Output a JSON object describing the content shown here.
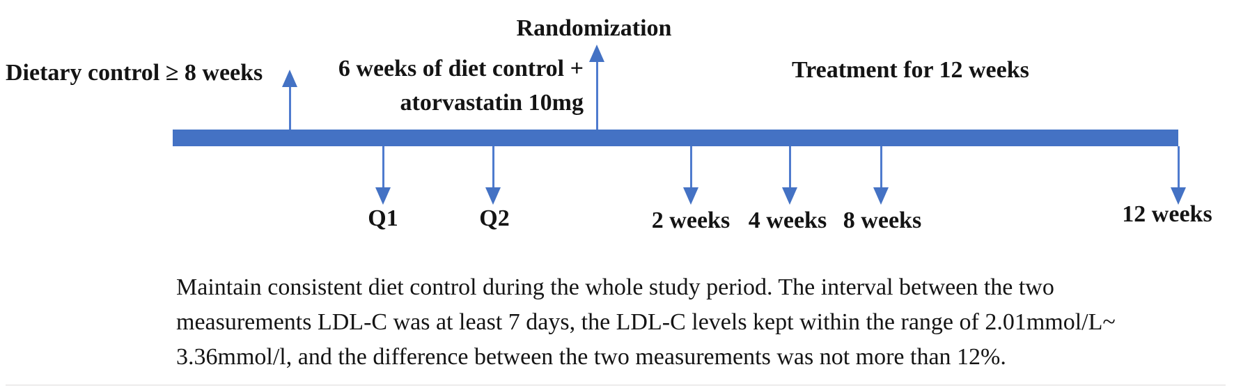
{
  "figure": {
    "type": "study-timeline-diagram",
    "colors": {
      "bar": "#4472C4",
      "arrow": "#4472C4",
      "arrow_tail": "#4F7BCE",
      "text": "#141414"
    },
    "phase_labels": {
      "dietary_control": "Dietary control ≥ 8 weeks",
      "diet_statin_line1": "6 weeks of diet control +",
      "diet_statin_line2": "atorvastatin 10mg",
      "randomization": "Randomization",
      "treatment": "Treatment for 12 weeks"
    },
    "timepoints": {
      "q1": "Q1",
      "q2": "Q2",
      "w2": "2 weeks",
      "w4": "4 weeks",
      "w8": "8 weeks",
      "w12": "12 weeks"
    },
    "note_lines": {
      "line1": "Maintain consistent diet control during the whole study period. The interval between the two",
      "line2": "measurements LDL-C was at least 7 days, the LDL-C levels kept within the range of 2.01mmol/L~",
      "line3": "3.36mmol/l, and the difference between the two measurements was not more than 12%."
    }
  }
}
